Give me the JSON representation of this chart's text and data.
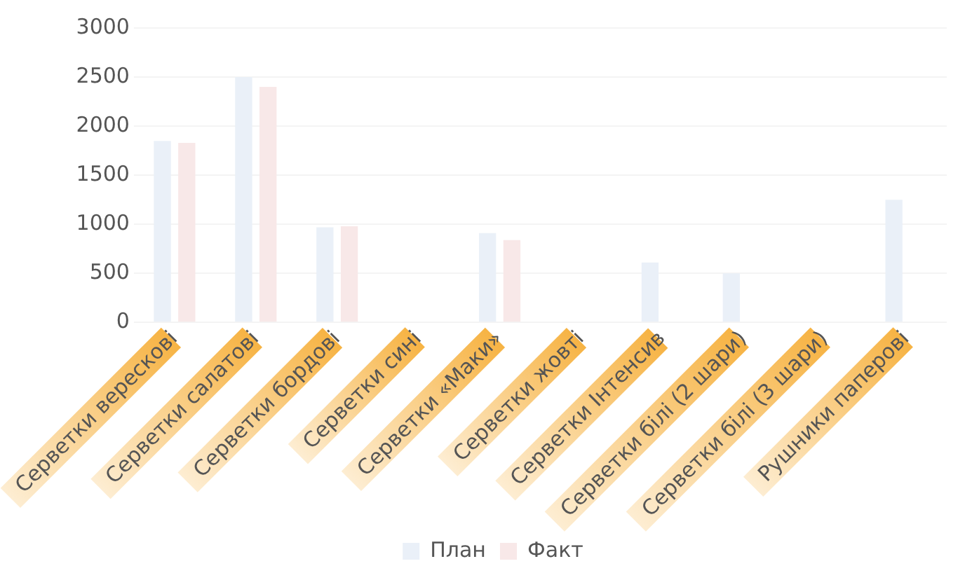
{
  "chart_data": {
    "type": "bar",
    "categories": [
      "Серветки верескові",
      "Серветки салатові",
      "Серветки бордові",
      "Серветки сині",
      "Серветки «Маки»",
      "Серветки жовті",
      "Серветки Інтенсив",
      "Серветки білі (2 шари)",
      "Серветки білі (3 шари)",
      "Рушники паперові"
    ],
    "series": [
      {
        "name": "План",
        "color": "#eaf0f8",
        "values": [
          1850,
          2500,
          970,
          null,
          910,
          null,
          610,
          500,
          null,
          1250
        ]
      },
      {
        "name": "Факт",
        "color": "#f8e8e8",
        "values": [
          1830,
          2400,
          980,
          null,
          840,
          null,
          null,
          null,
          null,
          null
        ]
      }
    ],
    "ylim": [
      0,
      3000
    ],
    "yticks": [
      0,
      500,
      1000,
      1500,
      2000,
      2500,
      3000
    ],
    "grid": "y",
    "legend": "bottom"
  }
}
